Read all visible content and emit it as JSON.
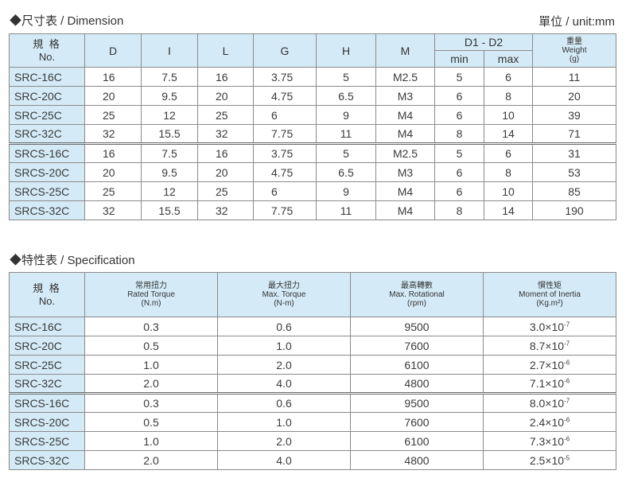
{
  "dimension": {
    "title": "◆尺寸表 / Dimension",
    "unit": "單位 / unit:mm",
    "head": {
      "model_cn": "規 格",
      "model_en": "No.",
      "D": "D",
      "I": "I",
      "L": "L",
      "G": "G",
      "H": "H",
      "M": "M",
      "d1d2": "D1 - D2",
      "min": "min",
      "max": "max",
      "weight_cn": "重量",
      "weight_en": "Weight",
      "weight_unit": "(g)"
    },
    "rows": [
      {
        "model": "SRC-16C",
        "D": "16",
        "I": "7.5",
        "L": "16",
        "G": "3.75",
        "H": "5",
        "M": "M2.5",
        "min": "5",
        "max": "6",
        "w": "11"
      },
      {
        "model": "SRC-20C",
        "D": "20",
        "I": "9.5",
        "L": "20",
        "G": "4.75",
        "H": "6.5",
        "M": "M3",
        "min": "6",
        "max": "8",
        "w": "20"
      },
      {
        "model": "SRC-25C",
        "D": "25",
        "I": "12",
        "L": "25",
        "G": "6",
        "H": "9",
        "M": "M4",
        "min": "6",
        "max": "10",
        "w": "39"
      },
      {
        "model": "SRC-32C",
        "D": "32",
        "I": "15.5",
        "L": "32",
        "G": "7.75",
        "H": "11",
        "M": "M4",
        "min": "8",
        "max": "14",
        "w": "71"
      },
      {
        "model": "SRCS-16C",
        "D": "16",
        "I": "7.5",
        "L": "16",
        "G": "3.75",
        "H": "5",
        "M": "M2.5",
        "min": "5",
        "max": "6",
        "w": "31"
      },
      {
        "model": "SRCS-20C",
        "D": "20",
        "I": "9.5",
        "L": "20",
        "G": "4.75",
        "H": "6.5",
        "M": "M3",
        "min": "6",
        "max": "8",
        "w": "53"
      },
      {
        "model": "SRCS-25C",
        "D": "25",
        "I": "12",
        "L": "25",
        "G": "6",
        "H": "9",
        "M": "M4",
        "min": "6",
        "max": "10",
        "w": "85"
      },
      {
        "model": "SRCS-32C",
        "D": "32",
        "I": "15.5",
        "L": "32",
        "G": "7.75",
        "H": "11",
        "M": "M4",
        "min": "8",
        "max": "14",
        "w": "190"
      }
    ]
  },
  "specification": {
    "title": "◆特性表 / Specification",
    "head": {
      "model_cn": "規 格",
      "model_en": "No.",
      "rated_cn": "常用扭力",
      "rated_en": "Rated Torque",
      "rated_unit": "(N.m)",
      "max_cn": "最大扭力",
      "max_en": "Max. Torque",
      "max_unit": "(N-m)",
      "rot_cn": "最高轉數",
      "rot_en": "Max. Rotational",
      "rot_unit": "(rpm)",
      "inertia_cn": "慣性矩",
      "inertia_en": "Moment of Inertia",
      "inertia_unit": "(Kg.m²)"
    },
    "rows": [
      {
        "model": "SRC-16C",
        "rated": "0.3",
        "max": "0.6",
        "rpm": "9500",
        "inertia_base": "3.0×10",
        "inertia_exp": "-7"
      },
      {
        "model": "SRC-20C",
        "rated": "0.5",
        "max": "1.0",
        "rpm": "7600",
        "inertia_base": "8.7×10",
        "inertia_exp": "-7"
      },
      {
        "model": "SRC-25C",
        "rated": "1.0",
        "max": "2.0",
        "rpm": "6100",
        "inertia_base": "2.7×10",
        "inertia_exp": "-6"
      },
      {
        "model": "SRC-32C",
        "rated": "2.0",
        "max": "4.0",
        "rpm": "4800",
        "inertia_base": "7.1×10",
        "inertia_exp": "-6"
      },
      {
        "model": "SRCS-16C",
        "rated": "0.3",
        "max": "0.6",
        "rpm": "9500",
        "inertia_base": "8.0×10",
        "inertia_exp": "-7"
      },
      {
        "model": "SRCS-20C",
        "rated": "0.5",
        "max": "1.0",
        "rpm": "7600",
        "inertia_base": "2.4×10",
        "inertia_exp": "-6"
      },
      {
        "model": "SRCS-25C",
        "rated": "1.0",
        "max": "2.0",
        "rpm": "6100",
        "inertia_base": "7.3×10",
        "inertia_exp": "-6"
      },
      {
        "model": "SRCS-32C",
        "rated": "2.0",
        "max": "4.0",
        "rpm": "4800",
        "inertia_base": "2.5×10",
        "inertia_exp": "-5"
      }
    ]
  }
}
